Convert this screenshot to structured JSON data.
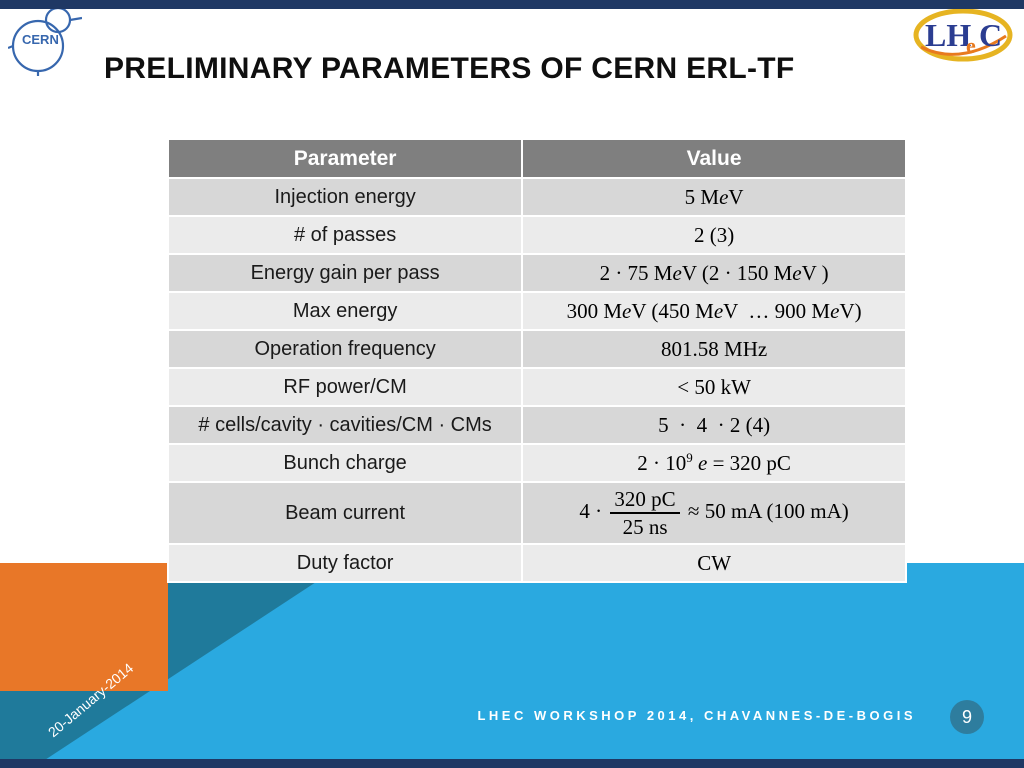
{
  "slide": {
    "title": "PRELIMINARY PARAMETERS OF CERN ERL-TF",
    "date_label": "20-January-2014",
    "footer": "LHEC WORKSHOP 2014, CHAVANNES-DE-BOGIS",
    "page_number": "9"
  },
  "logos": {
    "cern": "CERN",
    "lhec_lh": "LH",
    "lhec_e": "e",
    "lhec_c": "C"
  },
  "colors": {
    "navy_bar": "#1f3864",
    "light_blue": "#2aa9e0",
    "teal": "#1f7a9b",
    "orange": "#e87728",
    "header_gray": "#7f7f7f",
    "row_dark": "#d7d7d7",
    "row_light": "#ebebeb"
  },
  "table": {
    "headers": [
      "Parameter",
      "Value"
    ],
    "rows": [
      {
        "param": "Injection energy",
        "value_html": "5 M<i>e</i>V"
      },
      {
        "param": "# of passes",
        "value_html": "2 (3)"
      },
      {
        "param": "Energy gain per pass",
        "value_html": "2 · 75 M<i>e</i>V (2 · 150 M<i>e</i>V )"
      },
      {
        "param": "Max energy",
        "value_html": "300 M<i>e</i>V (450 M<i>e</i>V &nbsp;… 900 M<i>e</i>V)"
      },
      {
        "param": "Operation frequency",
        "value_html": "801.58 MHz"
      },
      {
        "param": "RF power/CM",
        "value_html": "&lt; 50 kW"
      },
      {
        "param": "# cells/cavity · cavities/CM · CMs",
        "value_html": "5 &nbsp;· &nbsp;4 &nbsp;· 2 (4)"
      },
      {
        "param": "Bunch charge",
        "value_html": "2 · 10<sup>9</sup> <i>e</i> = 320 pC"
      },
      {
        "param": "Beam current",
        "value_html": "4 · <span class=\"frac\"><span class=\"num\">320 pC</span><span class=\"den\">25 ns</span></span> ≈ 50 mA (100 mA)"
      },
      {
        "param": "Duty factor",
        "value_html": "CW"
      }
    ]
  }
}
